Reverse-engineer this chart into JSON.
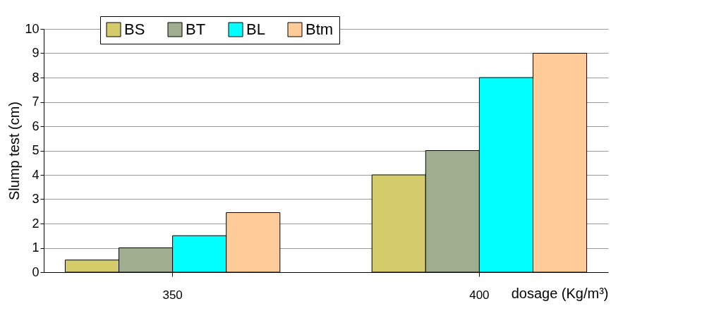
{
  "chart_data": {
    "type": "bar",
    "xlabel": "dosage (Kg/m³)",
    "ylabel": "Slump test (cm)",
    "categories": [
      "350",
      "400"
    ],
    "series": [
      {
        "name": "BS",
        "color": "#d4cc6a",
        "values": [
          0.5,
          4
        ]
      },
      {
        "name": "BT",
        "color": "#9fae8e",
        "values": [
          1,
          5
        ]
      },
      {
        "name": "BL",
        "color": "#00ffff",
        "values": [
          1.5,
          8
        ]
      },
      {
        "name": "Btm",
        "color": "#ffcc99",
        "values": [
          2.45,
          9
        ]
      }
    ],
    "ylim": [
      0,
      10
    ],
    "yticks": [
      0,
      1,
      2,
      3,
      4,
      5,
      6,
      7,
      8,
      9,
      10
    ],
    "grid": "y",
    "legend": "top"
  }
}
